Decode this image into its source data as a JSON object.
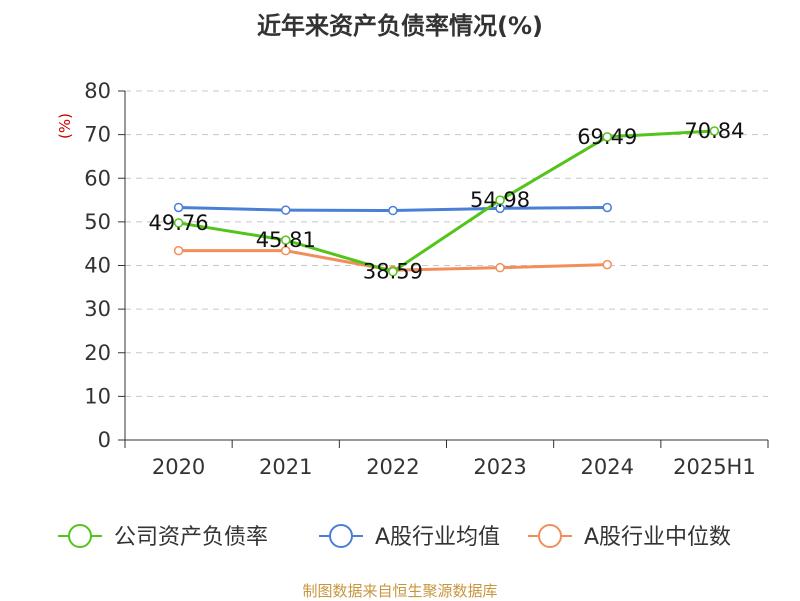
{
  "chart_data": {
    "type": "line",
    "title": "近年来资产负债率情况(%)",
    "ylabel": "(%)",
    "ylim": [
      0,
      80
    ],
    "yticks": [
      0,
      10,
      20,
      30,
      40,
      50,
      60,
      70,
      80
    ],
    "categories": [
      "2020",
      "2021",
      "2022",
      "2023",
      "2024",
      "2025H1"
    ],
    "grid": true,
    "legend_position": "bottom",
    "series": [
      {
        "name": "公司资产负债率",
        "color": "#52c41a",
        "labeled": true,
        "values": [
          49.76,
          45.81,
          38.59,
          54.98,
          69.49,
          70.84
        ],
        "labels": [
          "49.76",
          "45.81",
          "38.59",
          "54.98",
          "69.49",
          "70.84"
        ]
      },
      {
        "name": "A股行业均值",
        "color": "#4a7fd6",
        "labeled": false,
        "values": [
          53.3,
          52.7,
          52.6,
          53.1,
          53.3,
          null
        ]
      },
      {
        "name": "A股行业中位数",
        "color": "#f28e5a",
        "labeled": false,
        "values": [
          43.4,
          43.4,
          38.9,
          39.5,
          40.2,
          null
        ]
      }
    ],
    "ylabel_color": "#cc0000"
  },
  "footer": {
    "source": "制图数据来自恒生聚源数据库"
  }
}
